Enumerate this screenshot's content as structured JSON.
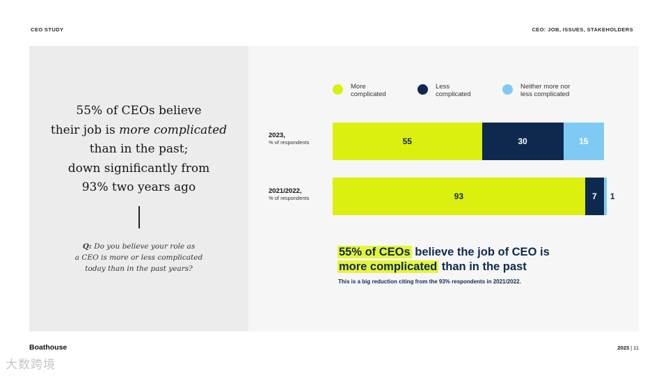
{
  "header": {
    "left": "CEO STUDY",
    "right": "CEO: JOB, ISSUES, STAKEHOLDERS"
  },
  "left_panel": {
    "headline": {
      "line1": "55% of CEOs believe",
      "line2_pre": "their job is ",
      "line2_em": "more complicated",
      "line3": "than in the past;",
      "line4": "down significantly from",
      "line5": "93% two years ago"
    },
    "question": {
      "q_label": "Q:",
      "line1": " Do you believe your role as",
      "line2": "a CEO is more or less complicated",
      "line3": "today than in the past years?"
    }
  },
  "chart_data": {
    "type": "bar",
    "orientation": "horizontal",
    "stacked": true,
    "unit": "% of respondents",
    "categories": [
      {
        "year": "2023,",
        "sub": "% of respondents"
      },
      {
        "year": "2021/2022,",
        "sub": "% of respondents"
      }
    ],
    "series": [
      {
        "name": "More complicated",
        "label_lines": [
          "More",
          "complicated"
        ],
        "color": "#dbf00f",
        "text_color": "#0d2a4e",
        "values": [
          55,
          93
        ]
      },
      {
        "name": "Less complicated",
        "label_lines": [
          "Less",
          "complicated"
        ],
        "color": "#0d2a4e",
        "text_color": "#ffffff",
        "values": [
          30,
          7
        ]
      },
      {
        "name": "Neither more nor less complicated",
        "label_lines": [
          "Neither more nor",
          "less complicated"
        ],
        "color": "#7fcaf5",
        "text_color": "#ffffff",
        "values": [
          15,
          1
        ]
      }
    ],
    "xlim": [
      0,
      100
    ],
    "legend_position": "top",
    "small_value_outside_threshold": 3
  },
  "takeaway": {
    "line1_hl": "55% of CEOs",
    "line1_rest": " believe the job of CEO is",
    "line2_hl": "more complicated",
    "line2_rest": " than in the past",
    "note": "This is a big reduction citing from the 93% respondents in 2021/2022."
  },
  "footer": {
    "logo": "Boathouse",
    "year": "2023",
    "sep": " | ",
    "page": "11",
    "watermark": "大数跨境"
  }
}
